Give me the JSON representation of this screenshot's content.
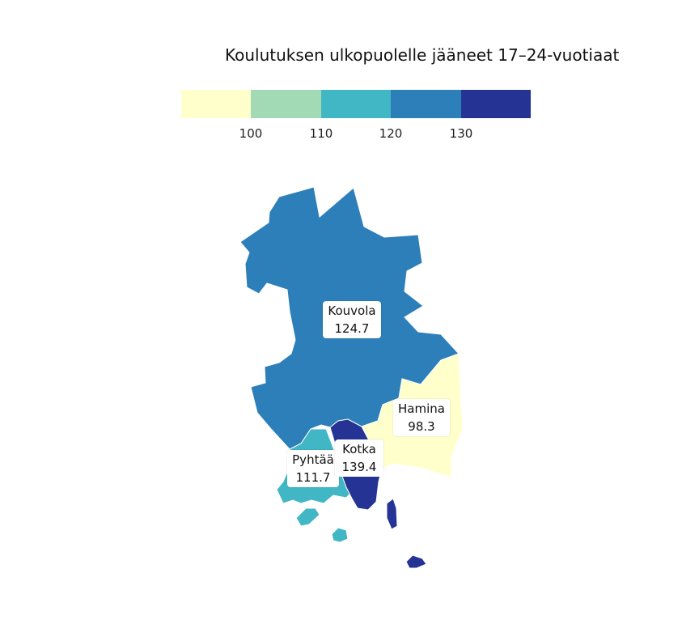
{
  "title": "Koulutuksen ulkopuolelle jääneet 17–24-vuotiaat",
  "legend": {
    "colors": [
      "#ffffcc",
      "#a1dab4",
      "#41b6c4",
      "#2c7fb8",
      "#253494"
    ],
    "ticks": [
      "100",
      "110",
      "120",
      "130"
    ]
  },
  "regions": [
    {
      "name": "Kouvola",
      "value": "124.7",
      "color": "#2c7fb8"
    },
    {
      "name": "Hamina",
      "value": "98.3",
      "color": "#ffffcc"
    },
    {
      "name": "Pyhtää",
      "value": "111.7",
      "color": "#41b6c4"
    },
    {
      "name": "Kotka",
      "value": "139.4",
      "color": "#253494"
    }
  ]
}
